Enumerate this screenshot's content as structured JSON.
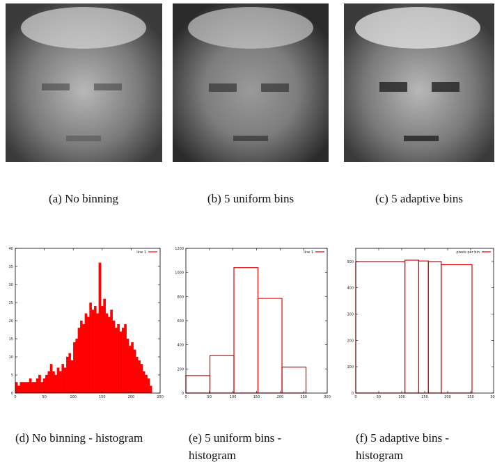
{
  "captions": [
    "(a) No binning",
    "(b) 5 uniform bins",
    "(c) 5 adaptive bins",
    "(d) No binning - histogram",
    "(e) 5 uniform bins - histogram",
    "(f) 5 adaptive bins - histogram"
  ],
  "chart_data": [
    {
      "type": "histogram",
      "legend": "line 1",
      "color": "#ff0000",
      "filled": true,
      "bins": [
        0,
        4,
        8,
        12,
        16,
        20,
        24,
        28,
        32,
        36,
        40,
        44,
        48,
        52,
        56,
        60,
        64,
        68,
        72,
        76,
        80,
        84,
        88,
        92,
        96,
        100,
        104,
        108,
        112,
        116,
        120,
        124,
        128,
        132,
        136,
        140,
        144,
        148,
        152,
        156,
        160,
        164,
        168,
        172,
        176,
        180,
        184,
        188,
        192,
        196,
        200,
        204,
        208,
        212,
        216,
        220,
        224,
        228,
        232,
        236
      ],
      "values": [
        3,
        2,
        3,
        3,
        3,
        3,
        4,
        3,
        3,
        4,
        5,
        3,
        4,
        5,
        6,
        8,
        6,
        5,
        7,
        6,
        8,
        7,
        10,
        11,
        9,
        14,
        15,
        18,
        20,
        19,
        22,
        21,
        25,
        23,
        24,
        22,
        36,
        24,
        26,
        22,
        21,
        23,
        20,
        18,
        19,
        17,
        18,
        19,
        15,
        13,
        14,
        12,
        10,
        9,
        8,
        6,
        5,
        4,
        2
      ],
      "xlim": [
        0,
        250
      ],
      "ylim": [
        0,
        40
      ],
      "xticks": [
        0,
        50,
        100,
        150,
        200,
        250
      ],
      "yticks": [
        0,
        5,
        10,
        15,
        20,
        25,
        30,
        35,
        40
      ]
    },
    {
      "type": "histogram",
      "legend": "line 1",
      "color": "#e00000",
      "filled": false,
      "bins": [
        0,
        51,
        102,
        153,
        204,
        255
      ],
      "values": [
        145,
        310,
        1040,
        785,
        215
      ],
      "xlim": [
        0,
        300
      ],
      "ylim": [
        0,
        1200
      ],
      "xticks": [
        0,
        50,
        100,
        150,
        200,
        250,
        300
      ],
      "yticks": [
        0,
        200,
        400,
        600,
        800,
        1000,
        1200
      ]
    },
    {
      "type": "histogram",
      "legend": "pixels per bin",
      "color": "#e00000",
      "filled": false,
      "bins": [
        0,
        107,
        137,
        158,
        186,
        253
      ],
      "values": [
        500,
        505,
        502,
        500,
        488
      ],
      "xlim": [
        0,
        300
      ],
      "ylim": [
        0,
        550
      ],
      "xticks": [
        0,
        50,
        100,
        150,
        200,
        250,
        300
      ],
      "yticks": [
        0,
        100,
        200,
        300,
        400,
        500
      ]
    }
  ]
}
